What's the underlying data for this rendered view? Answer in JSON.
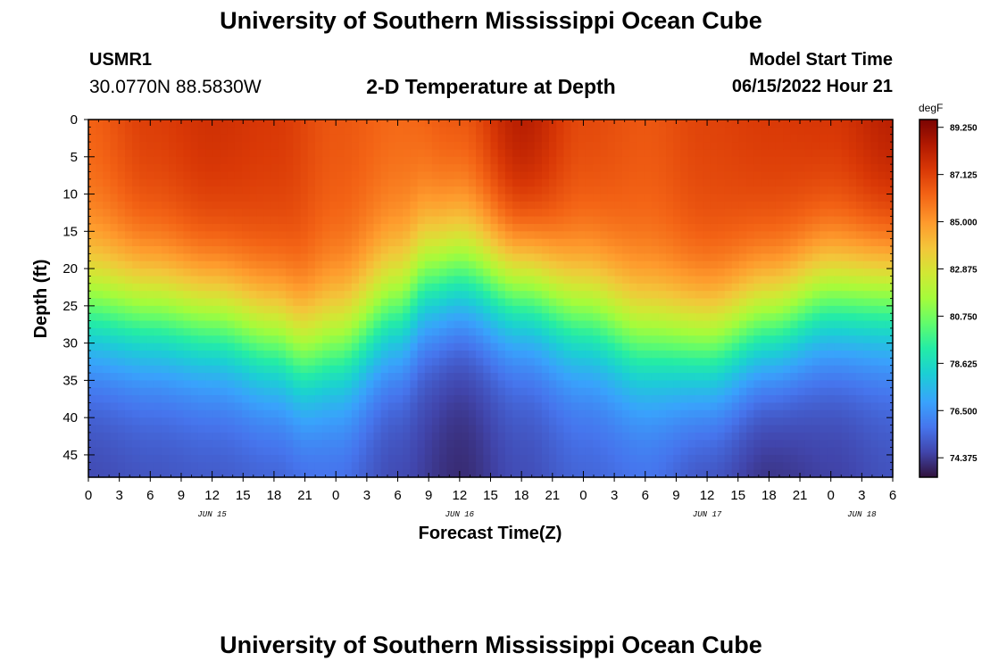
{
  "header": {
    "title": "University of Southern Mississippi Ocean Cube",
    "station_id": "USMR1",
    "coordinates": "30.0770N  88.5830W",
    "subtitle": "2-D Temperature at Depth",
    "model_start_label": "Model Start Time",
    "model_start_value": "06/15/2022 Hour 21"
  },
  "footer": {
    "title": "University of Southern Mississippi Ocean Cube"
  },
  "chart_data": {
    "type": "heatmap",
    "title": "2-D Temperature at Depth",
    "xlabel": "Forecast Time(Z)",
    "ylabel": "Depth (ft)",
    "x_ticks": [
      "0",
      "3",
      "6",
      "9",
      "12",
      "15",
      "18",
      "21",
      "0",
      "3",
      "6",
      "9",
      "12",
      "15",
      "18",
      "21",
      "0",
      "3",
      "6",
      "9",
      "12",
      "15",
      "18",
      "21",
      "0",
      "3",
      "6"
    ],
    "x_range_hours": [
      0,
      78
    ],
    "day_labels": [
      {
        "label": "JUN 15",
        "hour": 12
      },
      {
        "label": "JUN 16",
        "hour": 36
      },
      {
        "label": "JUN 17",
        "hour": 60
      },
      {
        "label": "JUN 18",
        "hour": 75
      }
    ],
    "y_ticks": [
      0,
      5,
      10,
      15,
      20,
      25,
      30,
      35,
      40,
      45
    ],
    "ylim": [
      0,
      48
    ],
    "y_inverted": true,
    "colorbar": {
      "units": "degF",
      "tick_labels": [
        "89.250",
        "87.125",
        "85.000",
        "82.875",
        "80.750",
        "78.625",
        "76.500",
        "74.375"
      ],
      "range": [
        73.5,
        89.6
      ]
    },
    "thermocline_depth_ft": {
      "hours": [
        0,
        6,
        12,
        18,
        21,
        24,
        30,
        33,
        36,
        42,
        48,
        54,
        60,
        66,
        72,
        78
      ],
      "depths": [
        25,
        25.5,
        26.5,
        29,
        31,
        30,
        25,
        21,
        20,
        22,
        25.5,
        29,
        30,
        27,
        23.5,
        23
      ]
    },
    "surface_temp_degF": {
      "hours": [
        0,
        6,
        12,
        18,
        24,
        30,
        36,
        42,
        48,
        54,
        60,
        66,
        72,
        78
      ],
      "values": [
        86.4,
        87.3,
        87.7,
        87.4,
        86.6,
        86.2,
        86.8,
        88.5,
        87.0,
        86.6,
        87.1,
        87.4,
        87.6,
        88.4
      ]
    },
    "bottom_temp_degF": {
      "hours": [
        0,
        6,
        12,
        18,
        24,
        30,
        36,
        42,
        48,
        54,
        60,
        66,
        72,
        78
      ],
      "values": [
        74.6,
        74.8,
        74.9,
        75.0,
        75.3,
        74.6,
        74.0,
        74.7,
        75.2,
        75.4,
        74.6,
        74.0,
        74.4,
        74.8
      ]
    }
  }
}
